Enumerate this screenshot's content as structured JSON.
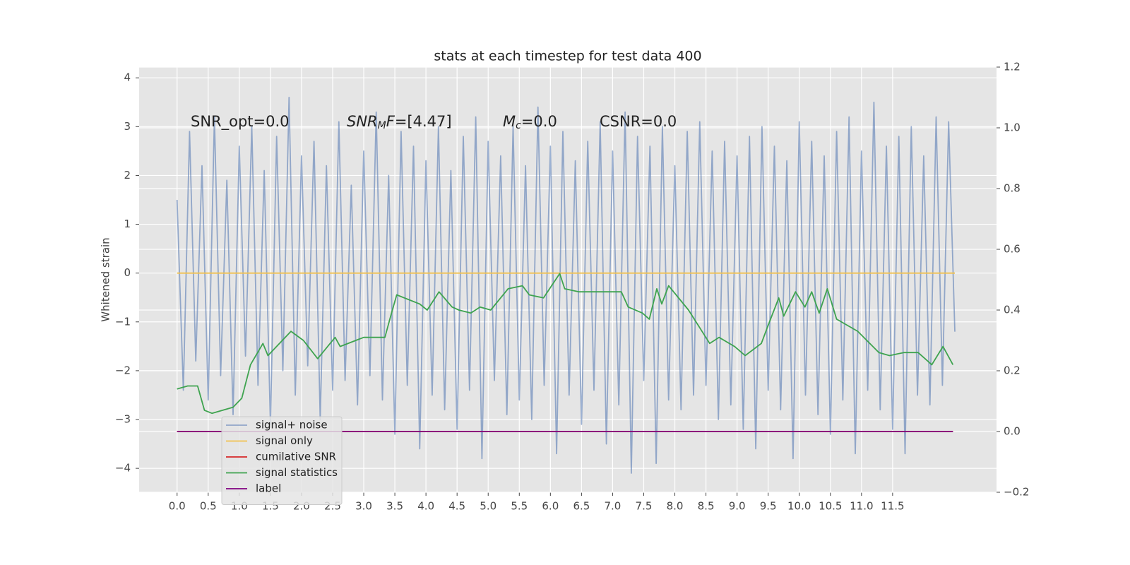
{
  "chart_data": {
    "type": "line",
    "title": "stats at each timestep for test data 400",
    "ylabel": "Whitened strain",
    "annotations": [
      {
        "parts": [
          {
            "text": "SNR_opt=0.0"
          }
        ]
      },
      {
        "parts": [
          {
            "text": "SNR",
            "italic": true
          },
          {
            "text": "M",
            "italic": true,
            "sub": true
          },
          {
            "text": "F",
            "italic": true
          },
          {
            "text": "=[4.47]"
          }
        ]
      },
      {
        "parts": [
          {
            "text": "M",
            "italic": true
          },
          {
            "text": "c",
            "italic": true,
            "sub": true
          },
          {
            "text": "=0.0"
          }
        ]
      },
      {
        "parts": [
          {
            "text": "CSNR=0.0"
          }
        ]
      }
    ],
    "xlim": [
      -0.61,
      13.17
    ],
    "ylim": [
      -4.49,
      4.22
    ],
    "y2lim": [
      -0.2,
      1.2
    ],
    "xticks": [
      {
        "value": 0,
        "label": "0.0"
      },
      0.5,
      {
        "value": 1,
        "label": "1.0"
      },
      1.5,
      {
        "value": 2,
        "label": "2.0"
      },
      2.5,
      {
        "value": 3,
        "label": "3.0"
      },
      3.5,
      {
        "value": 4,
        "label": "4.0"
      },
      4.5,
      {
        "value": 5,
        "label": "5.0"
      },
      5.5,
      {
        "value": 6,
        "label": "6.0"
      },
      6.5,
      {
        "value": 7,
        "label": "7.0"
      },
      7.5,
      {
        "value": 8,
        "label": "8.0"
      },
      8.5,
      {
        "value": 9,
        "label": "9.0"
      },
      9.5,
      {
        "value": 10,
        "label": "10.0"
      },
      10.5,
      {
        "value": 11,
        "label": "11.0"
      },
      11.5
    ],
    "yticks": [
      {
        "value": -4,
        "label": "−4"
      },
      {
        "value": -3,
        "label": "−3"
      },
      {
        "value": -2,
        "label": "−2"
      },
      {
        "value": -1,
        "label": "−1"
      },
      0,
      1,
      2,
      3,
      4
    ],
    "y2ticks": [
      {
        "value": -0.2,
        "label": "−0.2"
      },
      {
        "value": 0,
        "label": "0.0"
      },
      0.2,
      0.4,
      0.6,
      0.8,
      {
        "value": 1,
        "label": "1.0"
      },
      1.2
    ],
    "grid": true,
    "legend": "lower left",
    "series": [
      {
        "name": "signal+ noise",
        "color": "#4c72b0",
        "opacity": 0.55,
        "x": [
          0.0,
          0.1,
          0.2,
          0.3,
          0.4,
          0.5,
          0.6,
          0.7,
          0.8,
          0.9,
          1.0,
          1.1,
          1.2,
          1.3,
          1.4,
          1.5,
          1.6,
          1.7,
          1.8,
          1.9,
          2.0,
          2.1,
          2.2,
          2.3,
          2.4,
          2.5,
          2.6,
          2.7,
          2.8,
          2.9,
          3.0,
          3.1,
          3.2,
          3.3,
          3.4,
          3.5,
          3.6,
          3.7,
          3.8,
          3.9,
          4.0,
          4.1,
          4.2,
          4.3,
          4.4,
          4.5,
          4.6,
          4.7,
          4.8,
          4.9,
          5.0,
          5.1,
          5.2,
          5.3,
          5.4,
          5.5,
          5.6,
          5.7,
          5.8,
          5.9,
          6.0,
          6.1,
          6.2,
          6.3,
          6.4,
          6.5,
          6.6,
          6.7,
          6.8,
          6.9,
          7.0,
          7.1,
          7.2,
          7.3,
          7.4,
          7.5,
          7.6,
          7.7,
          7.8,
          7.9,
          8.0,
          8.1,
          8.2,
          8.3,
          8.4,
          8.5,
          8.6,
          8.7,
          8.8,
          8.9,
          9.0,
          9.1,
          9.2,
          9.3,
          9.4,
          9.5,
          9.6,
          9.7,
          9.8,
          9.9,
          10.0,
          10.1,
          10.2,
          10.3,
          10.4,
          10.5,
          10.6,
          10.7,
          10.8,
          10.9,
          11.0,
          11.1,
          11.2,
          11.3,
          11.4,
          11.5,
          11.6,
          11.7,
          11.8,
          11.9,
          12.0,
          12.1,
          12.2,
          12.3,
          12.4,
          12.5
        ],
        "values": [
          1.5,
          -2.4,
          2.9,
          -1.8,
          2.2,
          -2.6,
          3.2,
          -2.1,
          1.9,
          -2.9,
          2.6,
          -1.7,
          3.0,
          -2.3,
          2.1,
          -3.1,
          2.8,
          -2.0,
          3.6,
          -2.5,
          2.4,
          -1.9,
          2.7,
          -3.0,
          2.2,
          -2.4,
          3.1,
          -2.2,
          1.8,
          -2.7,
          2.5,
          -2.1,
          3.3,
          -2.6,
          2.0,
          -3.3,
          2.9,
          -2.3,
          2.6,
          -3.6,
          2.3,
          -2.5,
          3.0,
          -2.8,
          2.1,
          -3.2,
          2.8,
          -2.4,
          3.2,
          -3.8,
          2.7,
          -2.2,
          2.4,
          -2.9,
          3.0,
          -2.6,
          2.2,
          -3.0,
          3.4,
          -2.3,
          2.6,
          -3.7,
          2.9,
          -2.5,
          2.3,
          -3.1,
          2.7,
          -2.4,
          3.1,
          -3.5,
          2.5,
          -2.7,
          3.3,
          -4.1,
          2.8,
          -2.2,
          2.6,
          -3.9,
          3.0,
          -2.6,
          2.2,
          -2.8,
          2.9,
          -2.5,
          3.1,
          -2.3,
          2.5,
          -3.0,
          2.7,
          -2.7,
          2.4,
          -3.2,
          2.8,
          -3.6,
          3.0,
          -2.4,
          2.6,
          -2.8,
          2.3,
          -3.8,
          3.1,
          -2.5,
          2.7,
          -2.9,
          2.4,
          -3.3,
          2.9,
          -2.6,
          3.2,
          -3.7,
          2.5,
          -2.4,
          3.5,
          -2.8,
          2.6,
          -3.2,
          2.8,
          -3.7,
          3.0,
          -2.5,
          2.4,
          -2.7,
          3.2,
          -2.3,
          3.1,
          -1.2
        ]
      },
      {
        "name": "signal only",
        "color": "#f2c14e",
        "x": [
          0,
          12.5
        ],
        "values": [
          0,
          0
        ]
      },
      {
        "name": "cumilative SNR",
        "color": "#d62728",
        "axis": "y2",
        "x": [
          0,
          12.47
        ],
        "values": [
          0,
          0
        ]
      },
      {
        "name": "signal statistics",
        "color": "#3ea34f",
        "axis": "y2",
        "x": [
          0.0,
          0.17,
          0.33,
          0.44,
          0.56,
          0.9,
          1.04,
          1.18,
          1.38,
          1.46,
          1.83,
          2.03,
          2.26,
          2.54,
          2.62,
          3.0,
          3.34,
          3.42,
          3.53,
          3.9,
          4.02,
          4.21,
          4.42,
          4.53,
          4.72,
          4.87,
          5.04,
          5.32,
          5.55,
          5.66,
          5.89,
          6.15,
          6.23,
          6.46,
          6.8,
          7.14,
          7.25,
          7.48,
          7.59,
          7.71,
          7.79,
          7.9,
          8.22,
          8.56,
          8.71,
          8.96,
          9.13,
          9.39,
          9.5,
          9.67,
          9.75,
          9.94,
          10.09,
          10.2,
          10.32,
          10.45,
          10.6,
          10.94,
          11.28,
          11.45,
          11.68,
          11.91,
          12.13,
          12.31,
          12.47
        ],
        "values": [
          0.14,
          0.15,
          0.15,
          0.07,
          0.06,
          0.08,
          0.11,
          0.22,
          0.29,
          0.25,
          0.33,
          0.3,
          0.24,
          0.31,
          0.28,
          0.31,
          0.31,
          0.37,
          0.45,
          0.42,
          0.4,
          0.46,
          0.41,
          0.4,
          0.39,
          0.41,
          0.4,
          0.47,
          0.48,
          0.45,
          0.44,
          0.52,
          0.47,
          0.46,
          0.46,
          0.46,
          0.41,
          0.39,
          0.37,
          0.47,
          0.42,
          0.48,
          0.4,
          0.29,
          0.31,
          0.28,
          0.25,
          0.29,
          0.35,
          0.44,
          0.38,
          0.46,
          0.41,
          0.46,
          0.39,
          0.47,
          0.37,
          0.33,
          0.26,
          0.25,
          0.26,
          0.26,
          0.22,
          0.28,
          0.22
        ]
      },
      {
        "name": "label",
        "color": "#800080",
        "axis": "y2",
        "x": [
          0,
          12.47
        ],
        "values": [
          0,
          0
        ]
      }
    ]
  }
}
